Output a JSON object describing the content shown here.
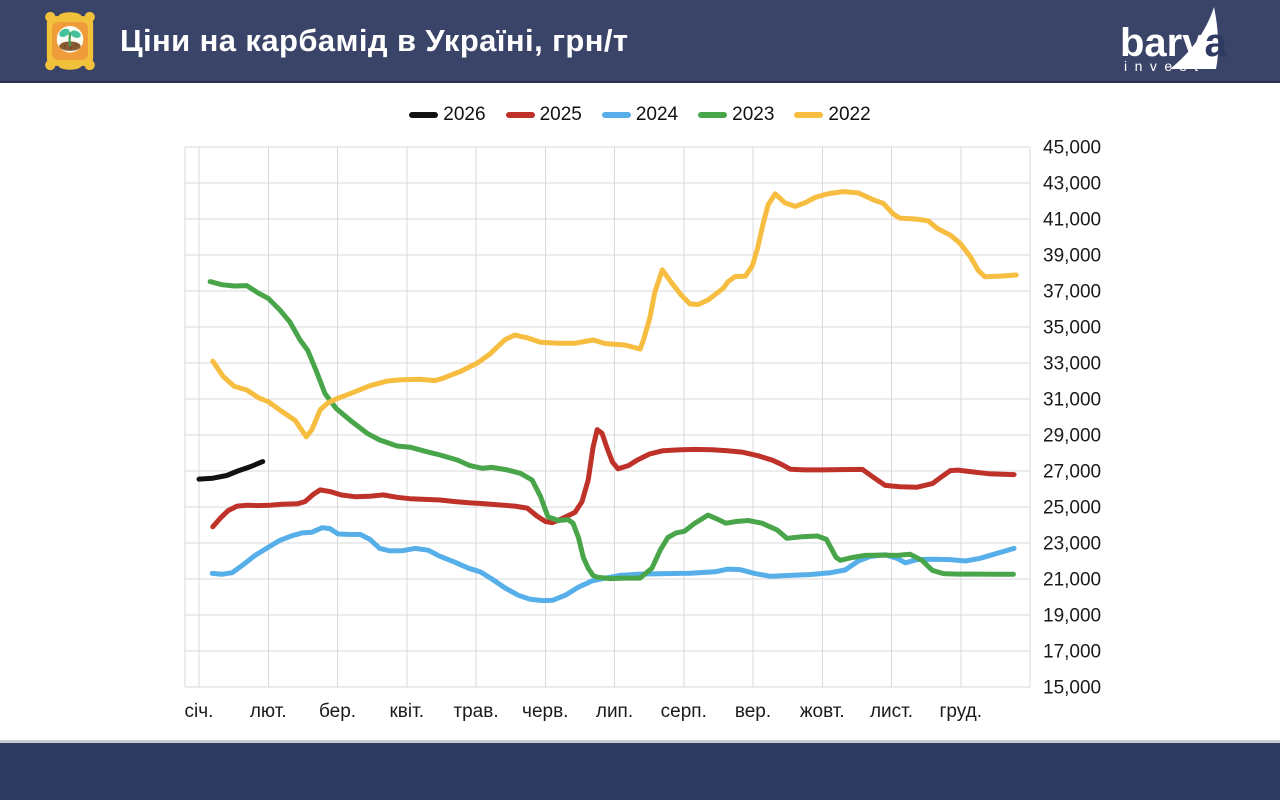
{
  "header": {
    "title": "Ціни на карбамід в Україні, грн/т",
    "logo": {
      "name": "barva",
      "sub": "invest"
    }
  },
  "colors": {
    "header_bg": "#3a4368",
    "footer_bg": "#2f3a63",
    "grid": "#d9d9d9",
    "axis_text": "#1a1a1a"
  },
  "chart_data": {
    "type": "line",
    "title": "Ціни на карбамід в Україні, грн/т",
    "xlabel": "",
    "ylabel": "грн/т",
    "categories": [
      "січ.",
      "лют.",
      "бер.",
      "квіт.",
      "трав.",
      "черв.",
      "лип.",
      "серп.",
      "вер.",
      "жовт.",
      "лист.",
      "груд."
    ],
    "x_unit": "month number, 1 = січень, fractional values = weekly points",
    "ylim": [
      15000,
      45000
    ],
    "ytick_step": 2000,
    "y_axis_side": "right",
    "grid": true,
    "legend_position": "top",
    "series": [
      {
        "name": "2026",
        "color": "#111111",
        "points": [
          [
            1.0,
            26550
          ],
          [
            1.2,
            26600
          ],
          [
            1.4,
            26750
          ],
          [
            1.56,
            27000
          ],
          [
            1.75,
            27250
          ],
          [
            1.92,
            27520
          ]
        ]
      },
      {
        "name": "2025",
        "color": "#bf322a",
        "points": [
          [
            1.2,
            23900
          ],
          [
            1.3,
            24350
          ],
          [
            1.42,
            24800
          ],
          [
            1.55,
            25050
          ],
          [
            1.7,
            25100
          ],
          [
            1.85,
            25080
          ],
          [
            2.03,
            25100
          ],
          [
            2.2,
            25150
          ],
          [
            2.42,
            25180
          ],
          [
            2.53,
            25300
          ],
          [
            2.65,
            25700
          ],
          [
            2.75,
            25950
          ],
          [
            2.9,
            25850
          ],
          [
            3.05,
            25670
          ],
          [
            3.25,
            25570
          ],
          [
            3.47,
            25600
          ],
          [
            3.66,
            25670
          ],
          [
            3.86,
            25540
          ],
          [
            4.05,
            25460
          ],
          [
            4.27,
            25420
          ],
          [
            4.48,
            25390
          ],
          [
            4.7,
            25300
          ],
          [
            4.92,
            25230
          ],
          [
            5.13,
            25180
          ],
          [
            5.35,
            25110
          ],
          [
            5.56,
            25050
          ],
          [
            5.74,
            24940
          ],
          [
            5.88,
            24500
          ],
          [
            6.0,
            24200
          ],
          [
            6.1,
            24130
          ],
          [
            6.21,
            24300
          ],
          [
            6.32,
            24500
          ],
          [
            6.43,
            24700
          ],
          [
            6.53,
            25300
          ],
          [
            6.62,
            26500
          ],
          [
            6.69,
            28300
          ],
          [
            6.75,
            29300
          ],
          [
            6.82,
            29100
          ],
          [
            6.89,
            28300
          ],
          [
            6.97,
            27500
          ],
          [
            7.05,
            27120
          ],
          [
            7.2,
            27300
          ],
          [
            7.33,
            27610
          ],
          [
            7.51,
            27950
          ],
          [
            7.7,
            28130
          ],
          [
            7.92,
            28170
          ],
          [
            8.16,
            28200
          ],
          [
            8.41,
            28180
          ],
          [
            8.63,
            28130
          ],
          [
            8.84,
            28050
          ],
          [
            9.07,
            27850
          ],
          [
            9.28,
            27600
          ],
          [
            9.42,
            27350
          ],
          [
            9.54,
            27100
          ],
          [
            9.75,
            27060
          ],
          [
            10.0,
            27060
          ],
          [
            10.26,
            27080
          ],
          [
            10.58,
            27090
          ],
          [
            10.72,
            26700
          ],
          [
            10.91,
            26200
          ],
          [
            11.12,
            26130
          ],
          [
            11.37,
            26100
          ],
          [
            11.59,
            26300
          ],
          [
            11.73,
            26700
          ],
          [
            11.85,
            27020
          ],
          [
            11.96,
            27050
          ],
          [
            12.17,
            26950
          ],
          [
            12.4,
            26850
          ],
          [
            12.6,
            26820
          ],
          [
            12.77,
            26800
          ]
        ]
      },
      {
        "name": "2024",
        "color": "#56afe9",
        "points": [
          [
            1.19,
            21310
          ],
          [
            1.33,
            21260
          ],
          [
            1.48,
            21350
          ],
          [
            1.64,
            21800
          ],
          [
            1.81,
            22310
          ],
          [
            2.0,
            22760
          ],
          [
            2.17,
            23150
          ],
          [
            2.34,
            23400
          ],
          [
            2.49,
            23560
          ],
          [
            2.63,
            23600
          ],
          [
            2.78,
            23850
          ],
          [
            2.89,
            23800
          ],
          [
            3.01,
            23500
          ],
          [
            3.15,
            23480
          ],
          [
            3.33,
            23470
          ],
          [
            3.47,
            23200
          ],
          [
            3.61,
            22700
          ],
          [
            3.76,
            22560
          ],
          [
            3.95,
            22580
          ],
          [
            4.12,
            22700
          ],
          [
            4.31,
            22600
          ],
          [
            4.48,
            22260
          ],
          [
            4.7,
            21930
          ],
          [
            4.89,
            21600
          ],
          [
            5.06,
            21400
          ],
          [
            5.23,
            21000
          ],
          [
            5.42,
            20500
          ],
          [
            5.61,
            20100
          ],
          [
            5.78,
            19870
          ],
          [
            5.97,
            19800
          ],
          [
            6.11,
            19820
          ],
          [
            6.29,
            20100
          ],
          [
            6.48,
            20550
          ],
          [
            6.68,
            20900
          ],
          [
            6.87,
            21050
          ],
          [
            7.08,
            21200
          ],
          [
            7.37,
            21270
          ],
          [
            7.73,
            21300
          ],
          [
            8.09,
            21320
          ],
          [
            8.45,
            21400
          ],
          [
            8.64,
            21550
          ],
          [
            8.81,
            21520
          ],
          [
            9.03,
            21300
          ],
          [
            9.25,
            21150
          ],
          [
            9.54,
            21200
          ],
          [
            9.83,
            21250
          ],
          [
            10.12,
            21350
          ],
          [
            10.33,
            21500
          ],
          [
            10.52,
            22000
          ],
          [
            10.69,
            22250
          ],
          [
            10.91,
            22350
          ],
          [
            11.08,
            22150
          ],
          [
            11.2,
            21900
          ],
          [
            11.37,
            22080
          ],
          [
            11.59,
            22100
          ],
          [
            11.85,
            22080
          ],
          [
            12.07,
            22000
          ],
          [
            12.28,
            22150
          ],
          [
            12.5,
            22400
          ],
          [
            12.77,
            22700
          ]
        ]
      },
      {
        "name": "2023",
        "color": "#49a54a",
        "points": [
          [
            1.16,
            37520
          ],
          [
            1.33,
            37350
          ],
          [
            1.51,
            37280
          ],
          [
            1.69,
            37300
          ],
          [
            1.85,
            36900
          ],
          [
            2.0,
            36590
          ],
          [
            2.17,
            35940
          ],
          [
            2.31,
            35290
          ],
          [
            2.46,
            34280
          ],
          [
            2.57,
            33700
          ],
          [
            2.69,
            32600
          ],
          [
            2.82,
            31300
          ],
          [
            2.98,
            30480
          ],
          [
            3.18,
            29830
          ],
          [
            3.43,
            29090
          ],
          [
            3.61,
            28720
          ],
          [
            3.86,
            28390
          ],
          [
            4.05,
            28320
          ],
          [
            4.26,
            28100
          ],
          [
            4.48,
            27890
          ],
          [
            4.73,
            27610
          ],
          [
            4.91,
            27300
          ],
          [
            5.09,
            27150
          ],
          [
            5.23,
            27200
          ],
          [
            5.45,
            27060
          ],
          [
            5.64,
            26870
          ],
          [
            5.81,
            26500
          ],
          [
            5.93,
            25600
          ],
          [
            6.04,
            24450
          ],
          [
            6.19,
            24250
          ],
          [
            6.33,
            24300
          ],
          [
            6.4,
            24100
          ],
          [
            6.48,
            23300
          ],
          [
            6.55,
            22200
          ],
          [
            6.62,
            21600
          ],
          [
            6.69,
            21200
          ],
          [
            6.75,
            21100
          ],
          [
            6.94,
            21020
          ],
          [
            7.15,
            21050
          ],
          [
            7.37,
            21050
          ],
          [
            7.54,
            21600
          ],
          [
            7.66,
            22600
          ],
          [
            7.77,
            23300
          ],
          [
            7.89,
            23560
          ],
          [
            8.01,
            23650
          ],
          [
            8.16,
            24100
          ],
          [
            8.35,
            24550
          ],
          [
            8.5,
            24300
          ],
          [
            8.61,
            24100
          ],
          [
            8.77,
            24200
          ],
          [
            8.93,
            24250
          ],
          [
            9.13,
            24100
          ],
          [
            9.35,
            23720
          ],
          [
            9.49,
            23260
          ],
          [
            9.71,
            23350
          ],
          [
            9.93,
            23390
          ],
          [
            10.06,
            23200
          ],
          [
            10.13,
            22700
          ],
          [
            10.2,
            22200
          ],
          [
            10.26,
            22040
          ],
          [
            10.43,
            22190
          ],
          [
            10.62,
            22310
          ],
          [
            10.84,
            22330
          ],
          [
            11.08,
            22310
          ],
          [
            11.27,
            22370
          ],
          [
            11.44,
            22040
          ],
          [
            11.59,
            21480
          ],
          [
            11.75,
            21300
          ],
          [
            11.96,
            21270
          ],
          [
            12.21,
            21270
          ],
          [
            12.5,
            21260
          ],
          [
            12.76,
            21260
          ]
        ]
      },
      {
        "name": "2022",
        "color": "#f6bd41",
        "points": [
          [
            1.2,
            33100
          ],
          [
            1.35,
            32250
          ],
          [
            1.51,
            31700
          ],
          [
            1.69,
            31500
          ],
          [
            1.87,
            31050
          ],
          [
            2.0,
            30850
          ],
          [
            2.2,
            30300
          ],
          [
            2.39,
            29800
          ],
          [
            2.55,
            28900
          ],
          [
            2.63,
            29300
          ],
          [
            2.75,
            30400
          ],
          [
            2.86,
            30780
          ],
          [
            2.98,
            31000
          ],
          [
            3.22,
            31350
          ],
          [
            3.47,
            31740
          ],
          [
            3.72,
            32000
          ],
          [
            3.9,
            32060
          ],
          [
            4.19,
            32100
          ],
          [
            4.41,
            32020
          ],
          [
            4.52,
            32150
          ],
          [
            4.77,
            32520
          ],
          [
            5.02,
            33000
          ],
          [
            5.2,
            33500
          ],
          [
            5.42,
            34300
          ],
          [
            5.56,
            34550
          ],
          [
            5.74,
            34400
          ],
          [
            5.93,
            34150
          ],
          [
            6.19,
            34100
          ],
          [
            6.43,
            34100
          ],
          [
            6.69,
            34280
          ],
          [
            6.87,
            34080
          ],
          [
            7.15,
            34000
          ],
          [
            7.37,
            33780
          ],
          [
            7.42,
            34300
          ],
          [
            7.51,
            35500
          ],
          [
            7.58,
            36900
          ],
          [
            7.69,
            38170
          ],
          [
            7.83,
            37430
          ],
          [
            7.96,
            36790
          ],
          [
            8.09,
            36280
          ],
          [
            8.21,
            36250
          ],
          [
            8.35,
            36500
          ],
          [
            8.57,
            37150
          ],
          [
            8.64,
            37520
          ],
          [
            8.74,
            37800
          ],
          [
            8.89,
            37830
          ],
          [
            8.99,
            38400
          ],
          [
            9.06,
            39300
          ],
          [
            9.15,
            40800
          ],
          [
            9.22,
            41800
          ],
          [
            9.32,
            42400
          ],
          [
            9.46,
            41900
          ],
          [
            9.61,
            41700
          ],
          [
            9.75,
            41900
          ],
          [
            9.9,
            42200
          ],
          [
            10.08,
            42400
          ],
          [
            10.3,
            42520
          ],
          [
            10.52,
            42450
          ],
          [
            10.74,
            42060
          ],
          [
            10.88,
            41870
          ],
          [
            11.02,
            41300
          ],
          [
            11.12,
            41050
          ],
          [
            11.34,
            41000
          ],
          [
            11.53,
            40900
          ],
          [
            11.66,
            40480
          ],
          [
            11.85,
            40100
          ],
          [
            11.99,
            39650
          ],
          [
            12.14,
            38900
          ],
          [
            12.25,
            38150
          ],
          [
            12.35,
            37790
          ],
          [
            12.57,
            37830
          ],
          [
            12.8,
            37890
          ]
        ]
      }
    ]
  }
}
